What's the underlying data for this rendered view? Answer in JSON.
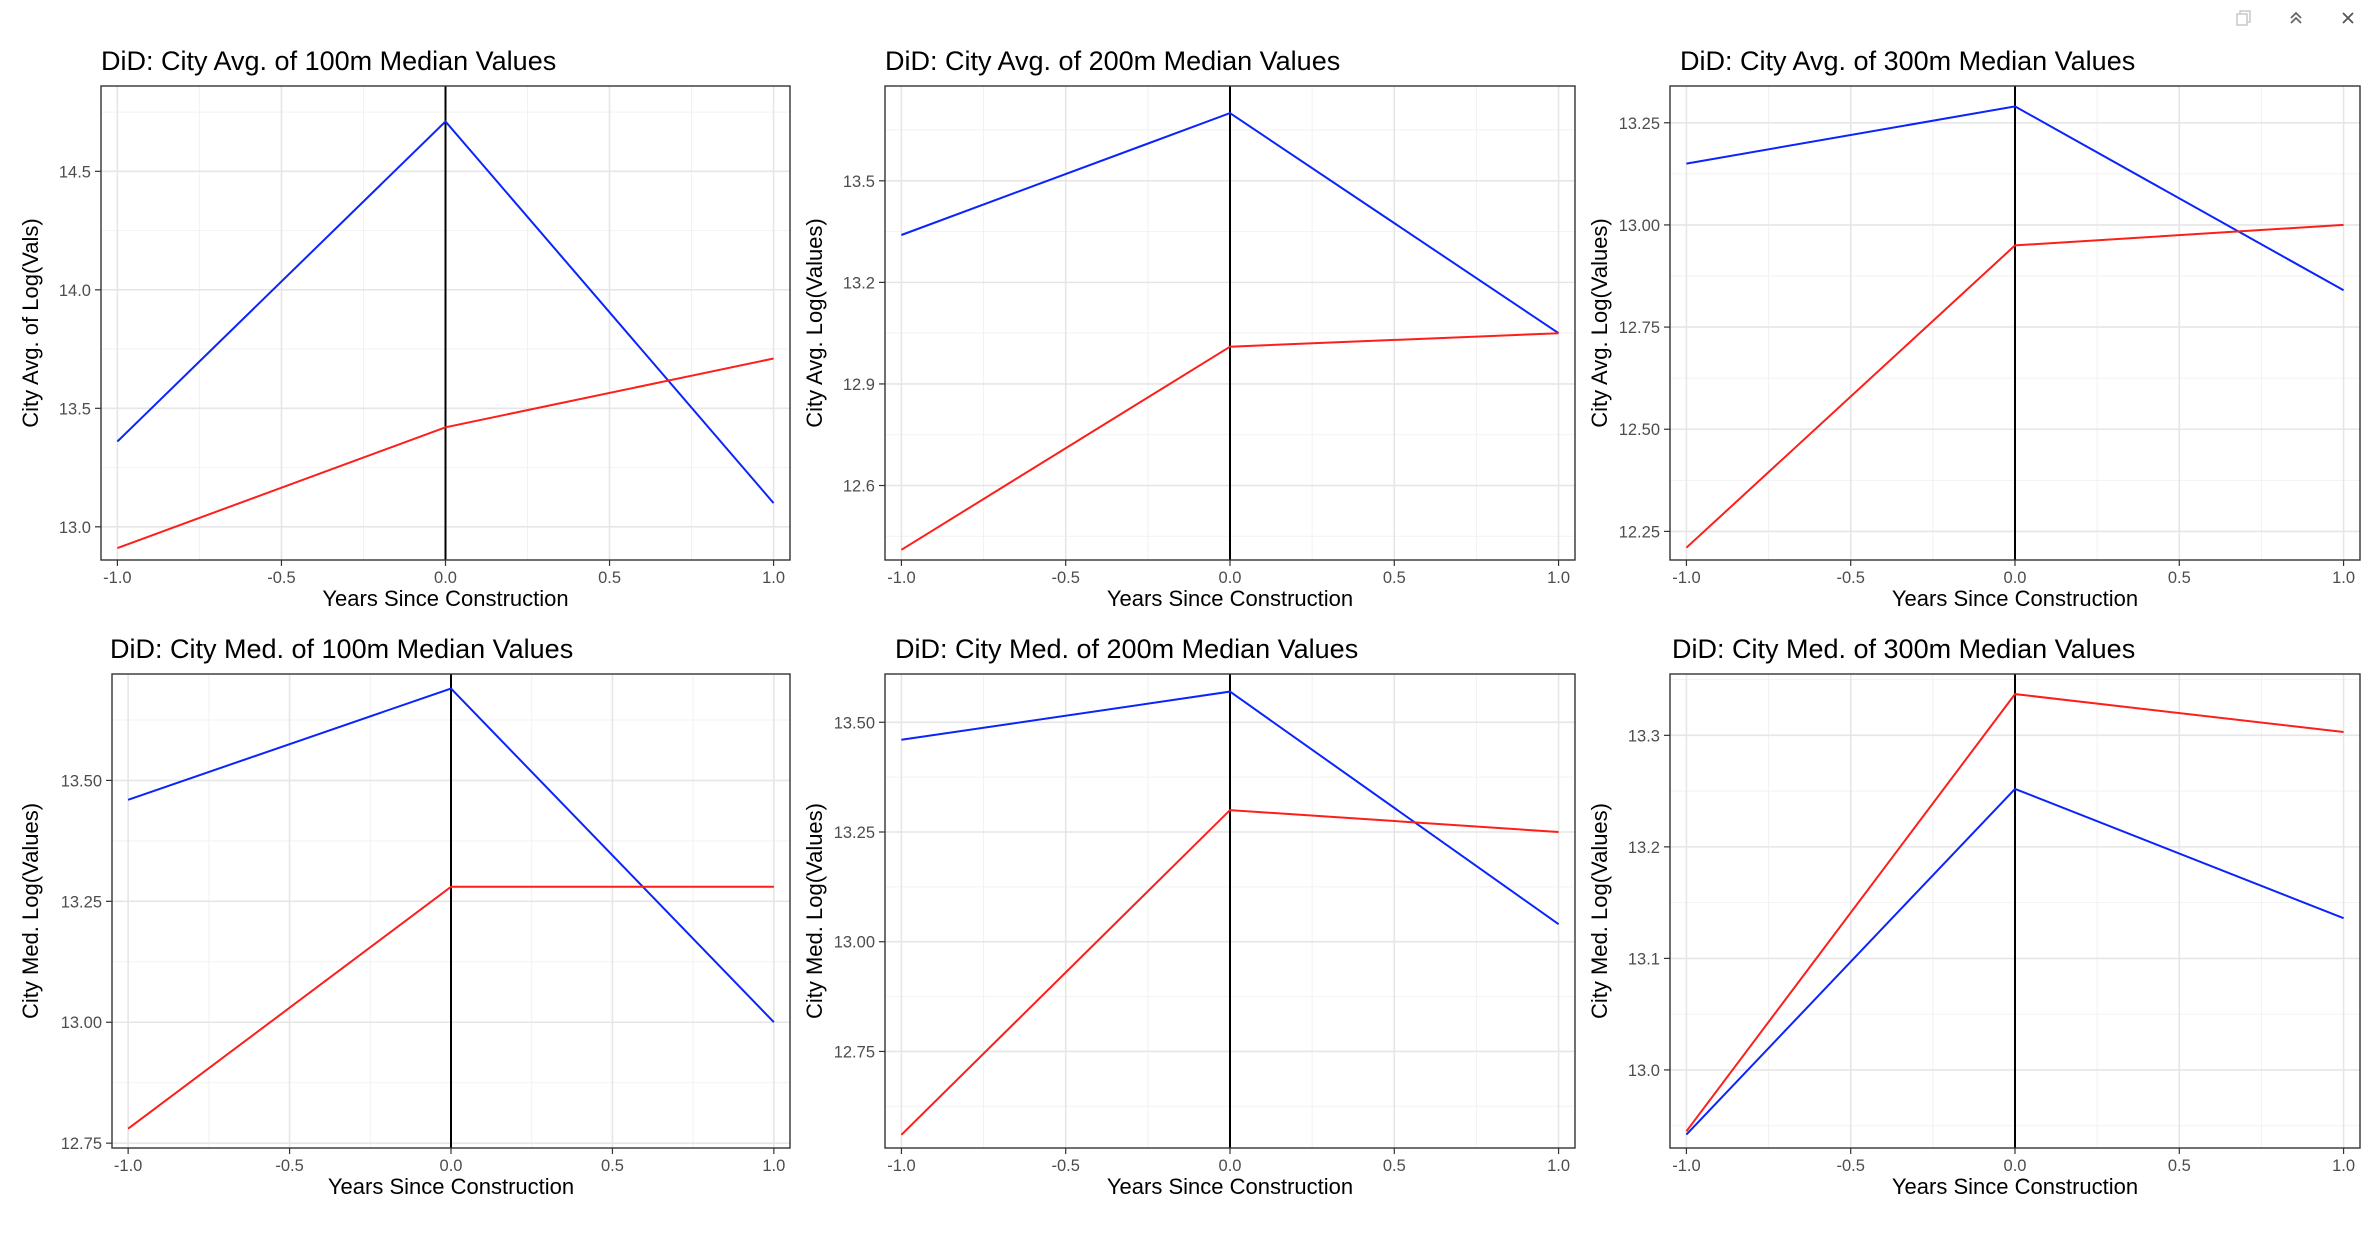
{
  "toolbar": {
    "icons": [
      "copy-icon",
      "collapse-up-icon",
      "close-icon"
    ]
  },
  "colors": {
    "series_blue": "#0b24fb",
    "series_red": "#fc1f1a",
    "vline": "#000000",
    "grid_major": "#e6e6e6",
    "grid_minor": "#f2f2f2",
    "panel_border": "#333333"
  },
  "chart_data": [
    {
      "type": "line",
      "title": "DiD: City Avg. of 100m Median Values",
      "xlabel": "Years Since Construction",
      "ylabel": "City Avg. of Log(Vals)",
      "x": [
        -1.0,
        0.0,
        1.0
      ],
      "xticks": [
        "-1.0",
        "-0.5",
        "0.0",
        "0.5",
        "1.0"
      ],
      "xlim": [
        -1.05,
        1.05
      ],
      "ylim": [
        12.86,
        14.86
      ],
      "yticks": [
        "13.0",
        "13.5",
        "14.0",
        "14.5"
      ],
      "grid": true,
      "vline_x": 0,
      "series": [
        {
          "color": "#0b24fb",
          "values": [
            13.36,
            14.71,
            13.1
          ]
        },
        {
          "color": "#fc1f1a",
          "values": [
            12.91,
            13.42,
            13.71
          ]
        }
      ]
    },
    {
      "type": "line",
      "title": "DiD: City Avg. of 200m Median Values",
      "xlabel": "Years Since Construction",
      "ylabel": "City Avg. Log(Values)",
      "x": [
        -1.0,
        0.0,
        1.0
      ],
      "xticks": [
        "-1.0",
        "-0.5",
        "0.0",
        "0.5",
        "1.0"
      ],
      "xlim": [
        -1.05,
        1.05
      ],
      "ylim": [
        12.38,
        13.78
      ],
      "yticks": [
        "12.6",
        "12.9",
        "13.2",
        "13.5"
      ],
      "grid": true,
      "vline_x": 0,
      "series": [
        {
          "color": "#0b24fb",
          "values": [
            13.34,
            13.7,
            13.05
          ]
        },
        {
          "color": "#fc1f1a",
          "values": [
            12.41,
            13.01,
            13.05
          ]
        }
      ]
    },
    {
      "type": "line",
      "title": "DiD: City Avg. of 300m Median Values",
      "xlabel": "Years Since Construction",
      "ylabel": "City Avg. Log(Values)",
      "x": [
        -1.0,
        0.0,
        1.0
      ],
      "xticks": [
        "-1.0",
        "-0.5",
        "0.0",
        "0.5",
        "1.0"
      ],
      "xlim": [
        -1.05,
        1.05
      ],
      "ylim": [
        12.18,
        13.34
      ],
      "yticks": [
        "12.25",
        "12.50",
        "12.75",
        "13.00",
        "13.25"
      ],
      "grid": true,
      "vline_x": 0,
      "series": [
        {
          "color": "#0b24fb",
          "values": [
            13.15,
            13.29,
            12.84
          ]
        },
        {
          "color": "#fc1f1a",
          "values": [
            12.21,
            12.95,
            13.0
          ]
        }
      ]
    },
    {
      "type": "line",
      "title": "DiD: City Med. of 100m Median Values",
      "xlabel": "Years Since Construction",
      "ylabel": "City Med. Log(Values)",
      "x": [
        -1.0,
        0.0,
        1.0
      ],
      "xticks": [
        "-1.0",
        "-0.5",
        "0.0",
        "0.5",
        "1.0"
      ],
      "xlim": [
        -1.05,
        1.05
      ],
      "ylim": [
        12.74,
        13.72
      ],
      "yticks": [
        "12.75",
        "13.00",
        "13.25",
        "13.50"
      ],
      "grid": true,
      "vline_x": 0,
      "series": [
        {
          "color": "#0b24fb",
          "values": [
            13.46,
            13.69,
            13.0
          ]
        },
        {
          "color": "#fc1f1a",
          "values": [
            12.78,
            13.28,
            13.28
          ]
        }
      ]
    },
    {
      "type": "line",
      "title": "DiD: City Med. of 200m Median Values",
      "xlabel": "Years Since Construction",
      "ylabel": "City Med. Log(Values)",
      "x": [
        -1.0,
        0.0,
        1.0
      ],
      "xticks": [
        "-1.0",
        "-0.5",
        "0.0",
        "0.5",
        "1.0"
      ],
      "xlim": [
        -1.05,
        1.05
      ],
      "ylim": [
        12.53,
        13.61
      ],
      "yticks": [
        "12.75",
        "13.00",
        "13.25",
        "13.50"
      ],
      "grid": true,
      "vline_x": 0,
      "series": [
        {
          "color": "#0b24fb",
          "values": [
            13.46,
            13.57,
            13.04
          ]
        },
        {
          "color": "#fc1f1a",
          "values": [
            12.56,
            13.3,
            13.25
          ]
        }
      ]
    },
    {
      "type": "line",
      "title": "DiD: City Med. of 300m Median Values",
      "xlabel": "Years Since Construction",
      "ylabel": "City Med. Log(Values)",
      "x": [
        -1.0,
        0.0,
        1.0
      ],
      "xticks": [
        "-1.0",
        "-0.5",
        "0.0",
        "0.5",
        "1.0"
      ],
      "xlim": [
        -1.05,
        1.05
      ],
      "ylim": [
        12.93,
        13.355
      ],
      "yticks": [
        "13.0",
        "13.1",
        "13.2",
        "13.3"
      ],
      "grid": true,
      "vline_x": 0,
      "series": [
        {
          "color": "#fc1f1a",
          "values": [
            12.945,
            13.337,
            13.303
          ]
        },
        {
          "color": "#0b24fb",
          "values": [
            12.942,
            13.252,
            13.136
          ]
        }
      ]
    }
  ]
}
